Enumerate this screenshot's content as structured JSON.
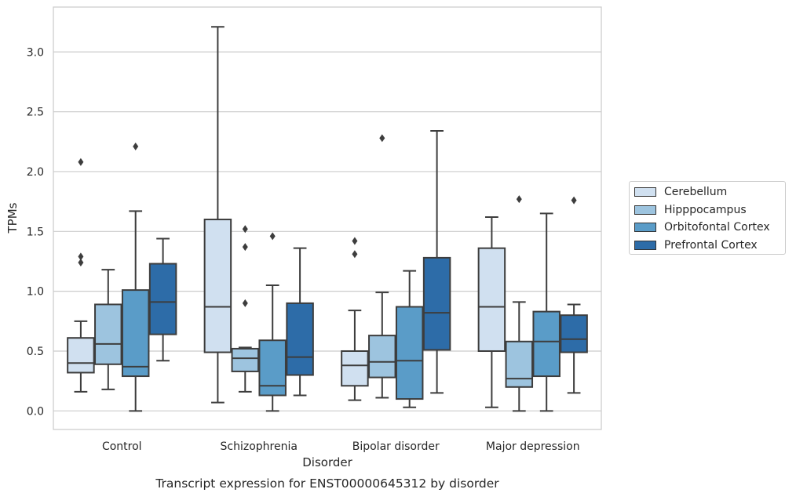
{
  "chart_data": {
    "type": "box",
    "title": "",
    "caption": "Transcript expression for ENST00000645312 by disorder",
    "xlabel": "Disorder",
    "ylabel": "TPMs",
    "ylim": [
      -0.155,
      3.375
    ],
    "yticks": [
      0.0,
      0.5,
      1.0,
      1.5,
      2.0,
      2.5,
      3.0
    ],
    "ytick_labels": [
      "0.0",
      "0.5",
      "1.0",
      "1.5",
      "2.0",
      "2.5",
      "3.0"
    ],
    "grid": "horizontal",
    "legend_position": "right",
    "categories": [
      "Control",
      "Schizophrenia",
      "Bipolar disorder",
      "Major depression"
    ],
    "series": [
      {
        "name": "Cerebellum",
        "color": "#d0e0f0",
        "boxes": [
          {
            "whislo": 0.16,
            "q1": 0.32,
            "median": 0.4,
            "q3": 0.61,
            "whishi": 0.75,
            "fliers": [
              1.24,
              1.29,
              2.08
            ]
          },
          {
            "whislo": 0.07,
            "q1": 0.49,
            "median": 0.87,
            "q3": 1.6,
            "whishi": 3.21,
            "fliers": []
          },
          {
            "whislo": 0.09,
            "q1": 0.21,
            "median": 0.38,
            "q3": 0.5,
            "whishi": 0.84,
            "fliers": [
              1.31,
              1.42
            ]
          },
          {
            "whislo": 0.03,
            "q1": 0.5,
            "median": 0.87,
            "q3": 1.36,
            "whishi": 1.62,
            "fliers": []
          }
        ]
      },
      {
        "name": "Hipppocampus",
        "color": "#9dc4df",
        "boxes": [
          {
            "whislo": 0.18,
            "q1": 0.39,
            "median": 0.56,
            "q3": 0.89,
            "whishi": 1.18,
            "fliers": []
          },
          {
            "whislo": 0.16,
            "q1": 0.33,
            "median": 0.44,
            "q3": 0.52,
            "whishi": 0.53,
            "fliers": [
              0.9,
              1.37,
              1.52
            ]
          },
          {
            "whislo": 0.11,
            "q1": 0.28,
            "median": 0.41,
            "q3": 0.63,
            "whishi": 0.99,
            "fliers": [
              2.28
            ]
          },
          {
            "whislo": 0.0,
            "q1": 0.2,
            "median": 0.27,
            "q3": 0.58,
            "whishi": 0.91,
            "fliers": [
              1.77
            ]
          }
        ]
      },
      {
        "name": "Orbitofontal Cortex",
        "color": "#5a9cc8",
        "boxes": [
          {
            "whislo": 0.0,
            "q1": 0.29,
            "median": 0.37,
            "q3": 1.01,
            "whishi": 1.67,
            "fliers": [
              2.21
            ]
          },
          {
            "whislo": 0.0,
            "q1": 0.13,
            "median": 0.21,
            "q3": 0.59,
            "whishi": 1.05,
            "fliers": [
              1.46
            ]
          },
          {
            "whislo": 0.03,
            "q1": 0.1,
            "median": 0.42,
            "q3": 0.87,
            "whishi": 1.17,
            "fliers": []
          },
          {
            "whislo": 0.0,
            "q1": 0.29,
            "median": 0.58,
            "q3": 0.83,
            "whishi": 1.65,
            "fliers": []
          }
        ]
      },
      {
        "name": "Prefrontal Cortex",
        "color": "#2d6ca8",
        "boxes": [
          {
            "whislo": 0.42,
            "q1": 0.64,
            "median": 0.91,
            "q3": 1.23,
            "whishi": 1.44,
            "fliers": []
          },
          {
            "whislo": 0.13,
            "q1": 0.3,
            "median": 0.45,
            "q3": 0.9,
            "whishi": 1.36,
            "fliers": []
          },
          {
            "whislo": 0.15,
            "q1": 0.51,
            "median": 0.82,
            "q3": 1.28,
            "whishi": 2.34,
            "fliers": []
          },
          {
            "whislo": 0.15,
            "q1": 0.49,
            "median": 0.6,
            "q3": 0.8,
            "whishi": 0.89,
            "fliers": [
              1.76
            ]
          }
        ]
      }
    ]
  }
}
